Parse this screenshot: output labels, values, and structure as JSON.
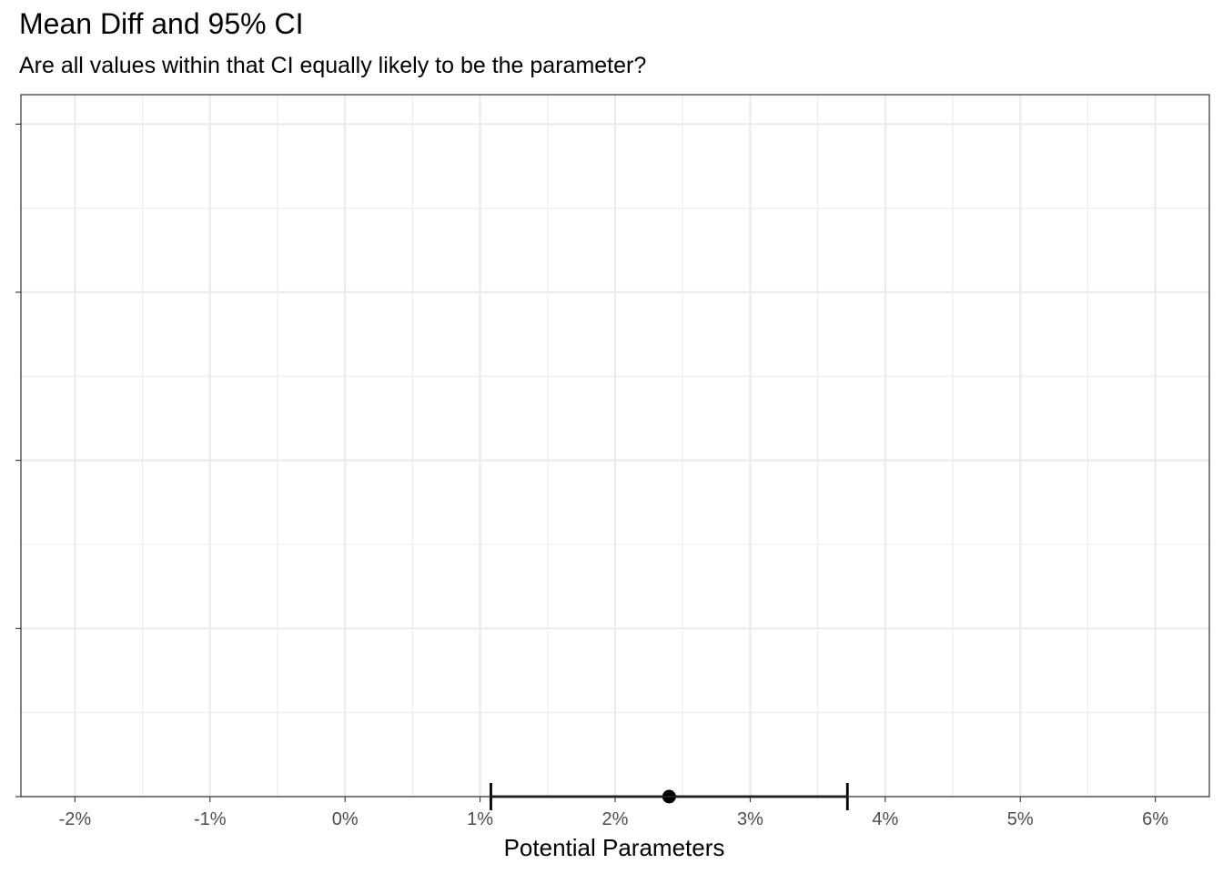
{
  "chart_data": {
    "type": "errorbar",
    "title": "Mean Diff and 95% CI",
    "subtitle": "Are all values within that CI equally likely to be the parameter?",
    "xlabel": "Potential Parameters",
    "ylabel": "",
    "xlim": [
      -2.4,
      6.4
    ],
    "ylim": [
      0,
      8.35
    ],
    "x_ticks": [
      -2,
      -1,
      0,
      1,
      2,
      3,
      4,
      5,
      6
    ],
    "x_tick_labels": [
      "-2%",
      "-1%",
      "0%",
      "1%",
      "2%",
      "3%",
      "4%",
      "5%",
      "6%"
    ],
    "y_ticks": [
      0,
      2,
      4,
      6,
      8
    ],
    "grid": true,
    "points": [
      {
        "estimate": 2.4,
        "lower": 1.08,
        "upper": 3.72,
        "y": 0
      }
    ],
    "colors": {
      "grid": "#ebebeb",
      "panel_border": "#333333",
      "mark": "#000000"
    }
  }
}
